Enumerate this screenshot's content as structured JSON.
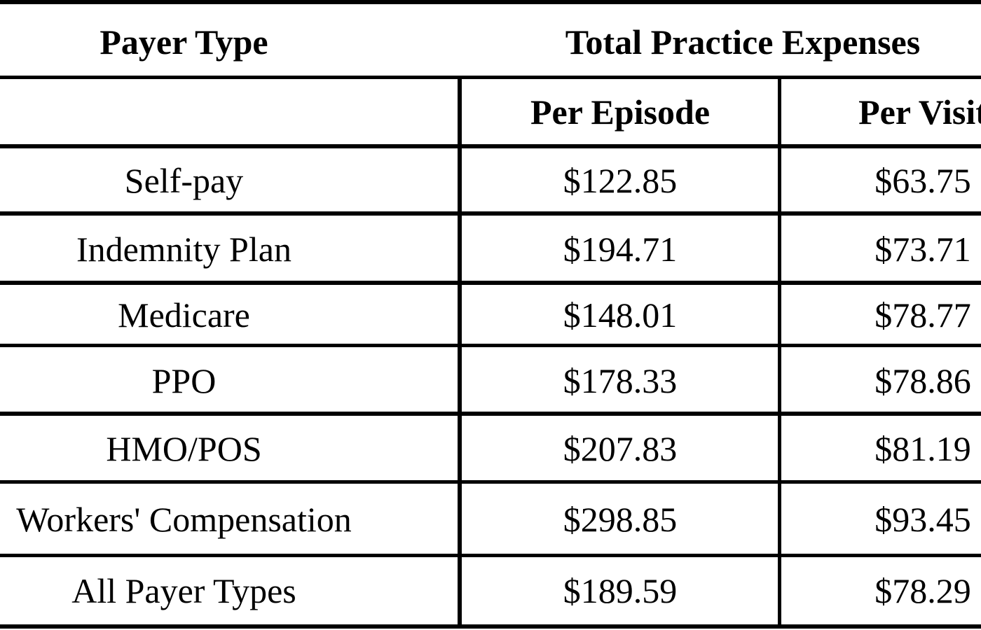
{
  "table": {
    "header": {
      "payer_type": "Payer Type",
      "total_practice_expenses": "Total Practice Expenses",
      "per_episode": "Per Episode",
      "per_visit": "Per Visit"
    },
    "rows": [
      {
        "payer": "Self-pay",
        "per_episode": "$122.85",
        "per_visit": "$63.75"
      },
      {
        "payer": "Indemnity Plan",
        "per_episode": "$194.71",
        "per_visit": "$73.71"
      },
      {
        "payer": "Medicare",
        "per_episode": "$148.01",
        "per_visit": "$78.77"
      },
      {
        "payer": "PPO",
        "per_episode": "$178.33",
        "per_visit": "$78.86"
      },
      {
        "payer": "HMO/POS",
        "per_episode": "$207.83",
        "per_visit": "$81.19"
      },
      {
        "payer": "Workers' Compensation",
        "per_episode": "$298.85",
        "per_visit": "$93.45"
      },
      {
        "payer": "All Payer Types",
        "per_episode": "$189.59",
        "per_visit": "$78.29"
      }
    ]
  }
}
